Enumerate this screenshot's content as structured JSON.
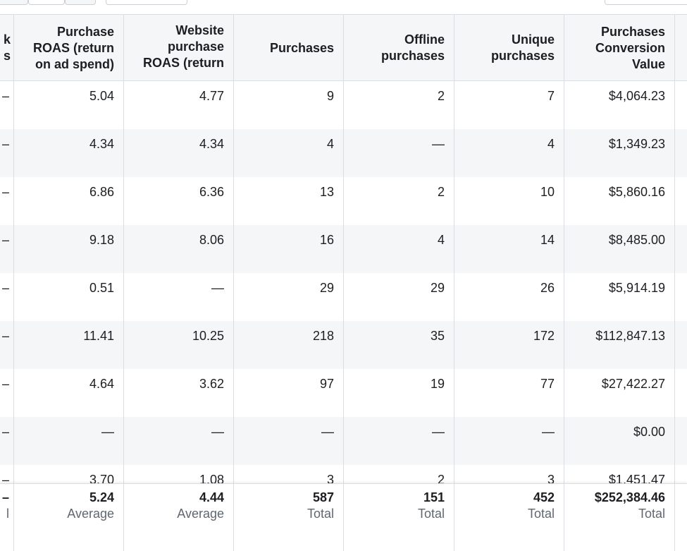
{
  "table": {
    "columns": [
      {
        "key": "partial",
        "label": "k\ns"
      },
      {
        "key": "purchase_roas",
        "label": "Purchase\nROAS (return\non ad spend)"
      },
      {
        "key": "website_purchase_roas",
        "label": "Website\npurchase\nROAS (return"
      },
      {
        "key": "purchases",
        "label": "Purchases"
      },
      {
        "key": "offline_purchases",
        "label": "Offline\npurchases"
      },
      {
        "key": "unique_purchases",
        "label": "Unique\npurchases"
      },
      {
        "key": "purchases_conversion_value",
        "label": "Purchases\nConversion\nValue"
      },
      {
        "key": "next",
        "label": ""
      }
    ],
    "rows": [
      [
        "–",
        "5.04",
        "4.77",
        "9",
        "2",
        "7",
        "$4,064.23",
        ""
      ],
      [
        "–",
        "4.34",
        "4.34",
        "4",
        "—",
        "4",
        "$1,349.23",
        ""
      ],
      [
        "–",
        "6.86",
        "6.36",
        "13",
        "2",
        "10",
        "$5,860.16",
        ""
      ],
      [
        "–",
        "9.18",
        "8.06",
        "16",
        "4",
        "14",
        "$8,485.00",
        ""
      ],
      [
        "–",
        "0.51",
        "—",
        "29",
        "29",
        "26",
        "$5,914.19",
        ""
      ],
      [
        "–",
        "11.41",
        "10.25",
        "218",
        "35",
        "172",
        "$112,847.13",
        ""
      ],
      [
        "–",
        "4.64",
        "3.62",
        "97",
        "19",
        "77",
        "$27,422.27",
        ""
      ],
      [
        "–",
        "—",
        "—",
        "—",
        "—",
        "—",
        "$0.00",
        ""
      ],
      [
        "–",
        "3.70",
        "1.08",
        "3",
        "2",
        "3",
        "$1,451.47",
        ""
      ]
    ],
    "footer": [
      {
        "value": "–",
        "sub": "l"
      },
      {
        "value": "5.24",
        "sub": "Average"
      },
      {
        "value": "4.44",
        "sub": "Average"
      },
      {
        "value": "587",
        "sub": "Total"
      },
      {
        "value": "151",
        "sub": "Total"
      },
      {
        "value": "452",
        "sub": "Total"
      },
      {
        "value": "$252,384.46",
        "sub": "Total"
      },
      {
        "value": "",
        "sub": ""
      }
    ]
  }
}
